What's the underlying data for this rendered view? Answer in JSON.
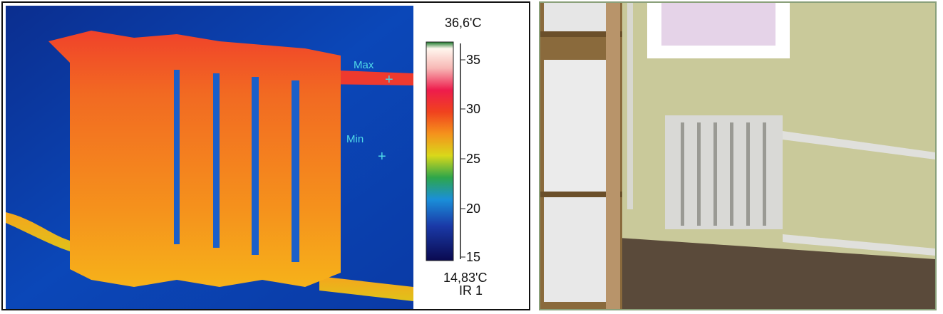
{
  "thermal": {
    "max_label": "Max",
    "min_label": "Min",
    "scale_top": "36,6'C",
    "scale_bottom": "14,83'C",
    "channel": "IR 1",
    "ticks": [
      "35",
      "30",
      "25",
      "20",
      "15"
    ]
  },
  "colors": {
    "background_cold": "#0a3aa5",
    "radiator_hot": "#f07a1e",
    "marker": "#4fd8e8",
    "wall": "#c9c99a"
  }
}
